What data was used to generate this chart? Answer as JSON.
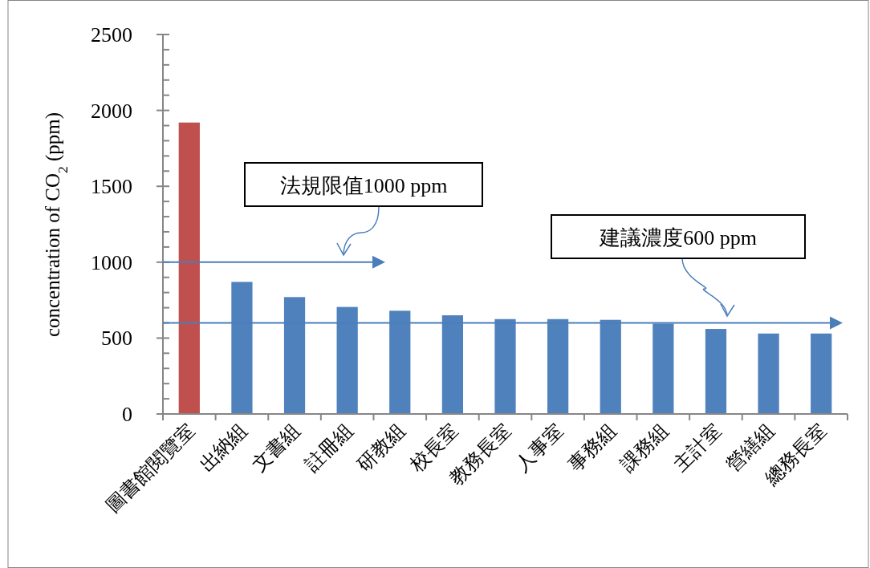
{
  "chart_data": {
    "type": "bar",
    "ylabel": "concentration of CO$_{2}$ (ppm)",
    "categories": [
      "圖書館閱覽室",
      "出納組",
      "文書組",
      "註冊組",
      "研教組",
      "校長室",
      "教務長室",
      "人事室",
      "事務組",
      "課務組",
      "主計室",
      "營繕組",
      "總務長室"
    ],
    "values": [
      1920,
      870,
      770,
      705,
      680,
      650,
      625,
      625,
      620,
      595,
      560,
      530,
      530
    ],
    "colors": [
      "#c0504d",
      "#4f81bd",
      "#4f81bd",
      "#4f81bd",
      "#4f81bd",
      "#4f81bd",
      "#4f81bd",
      "#4f81bd",
      "#4f81bd",
      "#4f81bd",
      "#4f81bd",
      "#4f81bd",
      "#4f81bd"
    ],
    "ylim": [
      0,
      2500
    ],
    "yticks": [
      0,
      {
        "value": 100,
        "label": null
      },
      {
        "value": 200,
        "label": null
      },
      {
        "value": 300,
        "label": null
      },
      {
        "value": 400,
        "label": null
      },
      500,
      {
        "value": 600,
        "label": null
      },
      {
        "value": 700,
        "label": null
      },
      {
        "value": 800,
        "label": null
      },
      {
        "value": 900,
        "label": null
      },
      1000,
      {
        "value": 1100,
        "label": null
      },
      {
        "value": 1200,
        "label": null
      },
      {
        "value": 1300,
        "label": null
      },
      {
        "value": 1400,
        "label": null
      },
      1500,
      {
        "value": 1600,
        "label": null
      },
      {
        "value": 1700,
        "label": null
      },
      {
        "value": 1800,
        "label": null
      },
      {
        "value": 1900,
        "label": null
      },
      2000,
      {
        "value": 2100,
        "label": null
      },
      {
        "value": 2200,
        "label": null
      },
      {
        "value": 2300,
        "label": null
      },
      {
        "value": 2400,
        "label": null
      },
      2500
    ],
    "ref_lines": [
      {
        "axis": "y",
        "value": 1000,
        "label": "法規限值1000 ppm",
        "color": "#4a7ebb"
      },
      {
        "axis": "y",
        "value": 600,
        "label": "建議濃度600 ppm",
        "color": "#4a7ebb"
      }
    ],
    "grid": false
  }
}
